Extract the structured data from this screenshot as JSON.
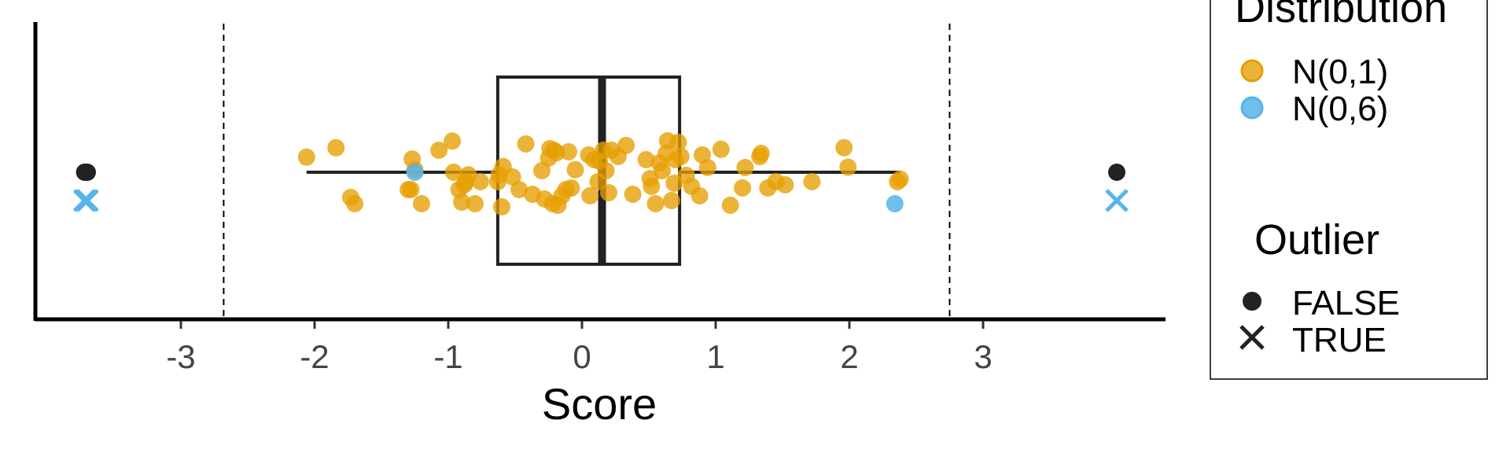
{
  "chart_data": {
    "type": "scatter",
    "title": "",
    "xlabel": "Score",
    "ylabel": "",
    "xlim": [
      -4.1,
      4.4
    ],
    "xticks": [
      "-3",
      "-2",
      "-1",
      "0",
      "1",
      "2",
      "3"
    ],
    "grid": false,
    "legend_placement": "right",
    "boxplot": {
      "q1": -0.63,
      "median": 0.15,
      "q3": 0.73,
      "whisker_low": -2.06,
      "whisker_high": 2.38
    },
    "reference_lines": [
      -2.68,
      2.75
    ],
    "series": [
      {
        "name": "N(0,1)",
        "color": "#E69F00",
        "x": [
          -2.06,
          -1.84,
          -1.73,
          -1.7,
          -1.3,
          -1.28,
          -1.27,
          -1.25,
          -1.2,
          -1.07,
          -0.96,
          -0.97,
          -0.92,
          -0.9,
          -0.88,
          -0.87,
          -0.85,
          -0.8,
          -0.76,
          -0.63,
          -0.62,
          -0.6,
          -0.59,
          -0.52,
          -0.47,
          -0.42,
          -0.37,
          -0.3,
          -0.28,
          -0.25,
          -0.24,
          -0.22,
          -0.21,
          -0.19,
          -0.18,
          -0.15,
          -0.12,
          -0.1,
          -0.08,
          -0.05,
          0.05,
          0.06,
          0.09,
          0.12,
          0.13,
          0.16,
          0.18,
          0.2,
          0.22,
          0.27,
          0.33,
          0.38,
          0.48,
          0.51,
          0.52,
          0.55,
          0.58,
          0.6,
          0.63,
          0.64,
          0.67,
          0.69,
          0.7,
          0.72,
          0.74,
          0.78,
          0.82,
          0.88,
          0.9,
          0.94,
          1.04,
          1.11,
          1.2,
          1.22,
          1.33,
          1.34,
          1.39,
          1.45,
          1.52,
          1.72,
          1.96,
          1.99,
          2.36,
          2.38
        ],
        "y": [
          0.48,
          0.78,
          -0.8,
          -1.0,
          -0.55,
          -0.55,
          0.42,
          0.08,
          -1.0,
          0.7,
          0.0,
          0.99,
          -0.55,
          -0.95,
          -0.4,
          -0.3,
          -0.08,
          -1.0,
          -0.3,
          -0.3,
          -0.08,
          -1.1,
          0.18,
          -0.15,
          -0.55,
          0.9,
          -0.7,
          0.05,
          -0.85,
          0.45,
          0.75,
          -1.0,
          0.7,
          0.62,
          -1.05,
          -0.75,
          -0.55,
          0.65,
          -0.5,
          0.08,
          0.55,
          -0.75,
          0.4,
          -0.3,
          0.35,
          0.7,
          0.05,
          -0.65,
          0.7,
          0.5,
          0.85,
          -0.7,
          0.4,
          -0.2,
          -0.45,
          -1.0,
          0.3,
          0.05,
          0.6,
          1.0,
          -0.9,
          -0.35,
          0.4,
          0.95,
          0.5,
          -0.1,
          -0.45,
          -0.75,
          0.55,
          0.15,
          0.73,
          -1.05,
          -0.5,
          0.15,
          0.5,
          0.6,
          -0.5,
          -0.3,
          -0.4,
          -0.3,
          0.78,
          0.16,
          -0.3,
          -0.22
        ]
      },
      {
        "name": "N(0,6)",
        "color": "#56B4E9",
        "x": [
          -1.25,
          2.34
        ],
        "y": [
          0.0,
          -1.0
        ]
      }
    ],
    "outliers": [
      {
        "x": -3.72,
        "distribution": "N(0,6)",
        "outlier": "TRUE"
      },
      {
        "x": -3.7,
        "distribution": "N(0,6)",
        "outlier": "TRUE"
      },
      {
        "x": 4.0,
        "distribution": "N(0,6)",
        "outlier": "TRUE"
      }
    ]
  },
  "legend": {
    "distribution_title": "Distribution",
    "distribution_items": [
      {
        "label": "N(0,1)",
        "color": "#E69F00"
      },
      {
        "label": "N(0,6)",
        "color": "#56B4E9"
      }
    ],
    "outlier_title": "Outlier",
    "outlier_items": [
      {
        "label": "FALSE",
        "shape": "circle"
      },
      {
        "label": "TRUE",
        "shape": "cross"
      }
    ]
  }
}
